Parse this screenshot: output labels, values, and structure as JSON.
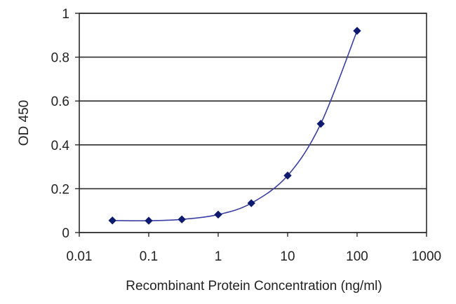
{
  "chart_data": {
    "type": "line",
    "x_scale": "log",
    "xlabel": "Recombinant Protein Concentration (ng/ml)",
    "ylabel": "OD 450",
    "xlim": [
      0.01,
      1000
    ],
    "ylim": [
      0,
      1
    ],
    "x_tick_labels": [
      "0.01",
      "0.1",
      "1",
      "10",
      "100",
      "1000"
    ],
    "x_tick_values": [
      0.01,
      0.1,
      1,
      10,
      100,
      1000
    ],
    "y_tick_labels": [
      "0",
      "0.2",
      "0.4",
      "0.6",
      "0.8",
      "1"
    ],
    "y_tick_values": [
      0,
      0.2,
      0.4,
      0.6,
      0.8,
      1
    ],
    "grid": "horizontal",
    "series": [
      {
        "x": [
          0.03,
          0.1,
          0.3,
          1,
          3,
          10,
          30,
          100
        ],
        "y": [
          0.055,
          0.054,
          0.06,
          0.082,
          0.134,
          0.26,
          0.496,
          0.92
        ],
        "color": "#3a3fa0",
        "marker_color": "#0e1a6e"
      }
    ]
  }
}
